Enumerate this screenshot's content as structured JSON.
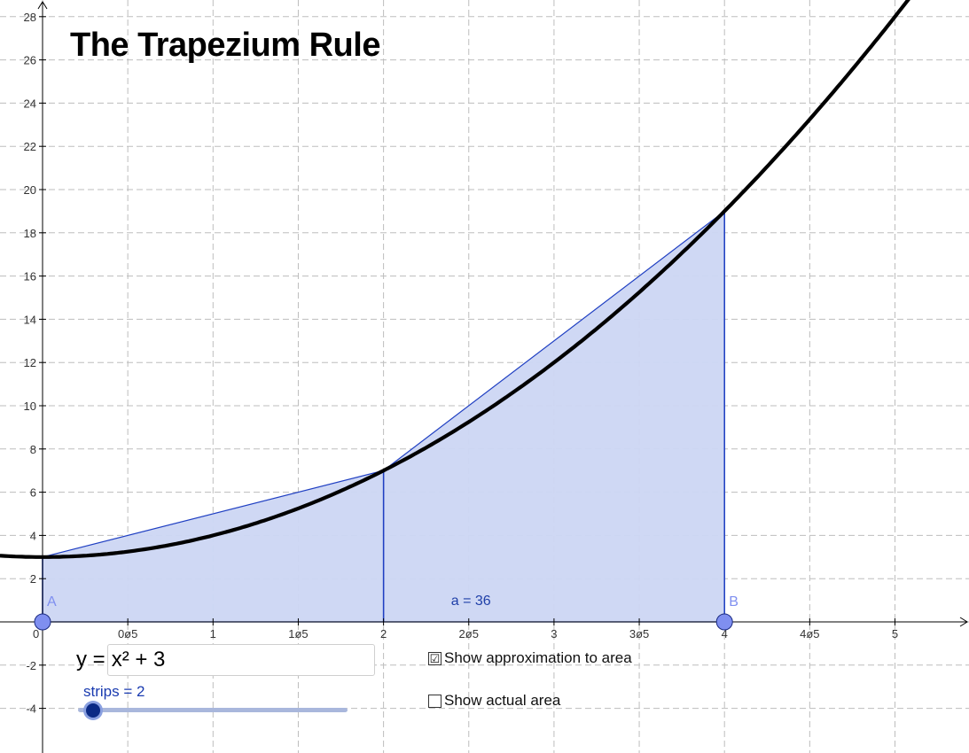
{
  "title": "The Trapezium Rule",
  "function_input": {
    "label": "y =",
    "value": "x² + 3"
  },
  "slider": {
    "label": "strips = 2",
    "value": 2
  },
  "checkboxes": [
    {
      "label": "Show approximation to area",
      "checked": true,
      "checkmark": "☑"
    },
    {
      "label": "Show actual area",
      "checked": false,
      "checkmark": ""
    }
  ],
  "points": {
    "a_label": "A",
    "b_label": "B"
  },
  "area_label": "a = 36",
  "axes": {
    "x_ticks": [
      "0",
      "0ø5",
      "1",
      "1ø5",
      "2",
      "2ø5",
      "3",
      "3ø5",
      "4",
      "4ø5",
      "5"
    ],
    "y_ticks": [
      "-4",
      "-2",
      "2",
      "4",
      "6",
      "8",
      "10",
      "12",
      "14",
      "16",
      "18",
      "20",
      "22",
      "24",
      "26",
      "28"
    ]
  },
  "colors": {
    "fill": "#ccd6f3",
    "stroke": "#1f3fc2",
    "point": "#7f8ff0",
    "curve": "#000000"
  }
}
